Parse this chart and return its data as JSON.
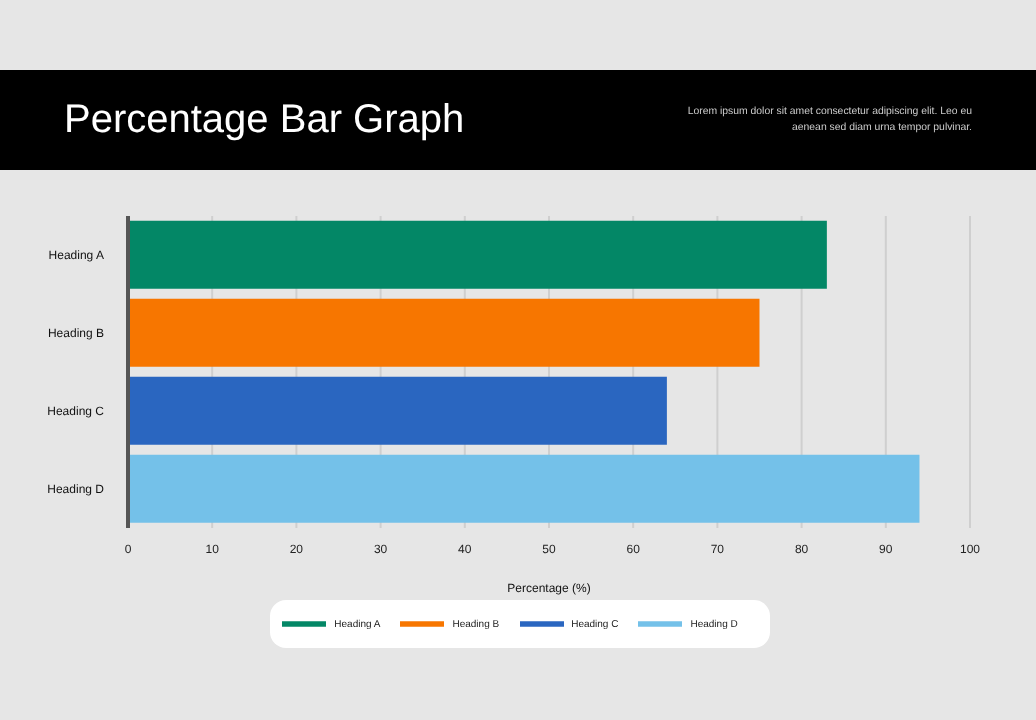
{
  "chart_data": {
    "type": "bar",
    "orientation": "horizontal",
    "stacked": true,
    "title": "Percentage Bar Graph",
    "subtitle": "Lorem ipsum dolor sit amet consectetur adipiscing elit. Leo eu aenean sed diam urna tempor pulvinar.",
    "xlabel": "Percentage (%)",
    "categories": [
      "Heading A",
      "Heading B",
      "Heading C",
      "Heading D"
    ],
    "series": [
      {
        "name": "Heading A",
        "color": "#038766",
        "values": [
          83,
          null,
          null,
          null
        ]
      },
      {
        "name": "Heading B",
        "color": "#f77600",
        "values": [
          null,
          75,
          null,
          null
        ]
      },
      {
        "name": "Heading C",
        "color": "#2a66c0",
        "values": [
          null,
          null,
          64,
          null
        ]
      },
      {
        "name": "Heading D",
        "color": "#74c1e9",
        "values": [
          null,
          null,
          null,
          94
        ]
      }
    ],
    "xlim": [
      0,
      100
    ],
    "xticks": [
      0,
      10,
      20,
      30,
      40,
      50,
      60,
      70,
      80,
      90,
      100
    ],
    "grid": "x",
    "legend": "bottom"
  }
}
